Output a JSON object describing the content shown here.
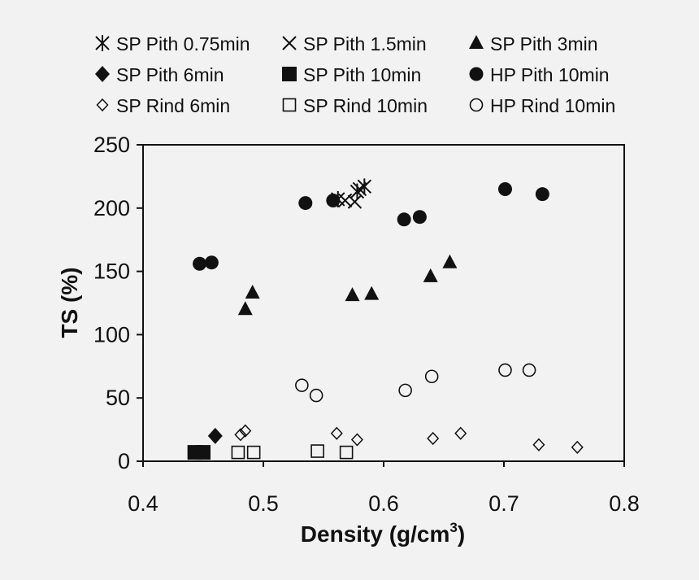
{
  "chart_data": {
    "type": "scatter",
    "xlabel": "Density (g/cm",
    "xlabel_superscript": "3",
    "xlabel_suffix": ")",
    "ylabel": "TS (%)",
    "xlim": [
      0.4,
      0.8
    ],
    "ylim": [
      0,
      250
    ],
    "x_ticks": [
      "0.4",
      "0.5",
      "0.6",
      "0.7",
      "0.8"
    ],
    "y_ticks": [
      "0",
      "50",
      "100",
      "150",
      "200",
      "250"
    ],
    "grid": false,
    "legend_position": "top",
    "series": [
      {
        "name": "SP Pith 0.75min",
        "marker": "asterisk",
        "points": [
          [
            0.562,
            207
          ],
          [
            0.578,
            213
          ],
          [
            0.584,
            217
          ]
        ]
      },
      {
        "name": "SP Pith 1.5min",
        "marker": "x",
        "points": [
          [
            0.568,
            206
          ],
          [
            0.576,
            205
          ],
          [
            0.58,
            215
          ]
        ]
      },
      {
        "name": "SP Pith 3min",
        "marker": "triangle",
        "points": [
          [
            0.485,
            120
          ],
          [
            0.491,
            133
          ],
          [
            0.574,
            131
          ],
          [
            0.59,
            132
          ],
          [
            0.639,
            146
          ],
          [
            0.655,
            157
          ]
        ]
      },
      {
        "name": "SP Pith 6min",
        "marker": "diamond-filled",
        "points": [
          [
            0.46,
            20
          ]
        ]
      },
      {
        "name": "SP Pith 10min",
        "marker": "square-filled",
        "points": [
          [
            0.443,
            7
          ],
          [
            0.45,
            7
          ]
        ]
      },
      {
        "name": "HP Pith 10min",
        "marker": "circle-filled",
        "points": [
          [
            0.447,
            156
          ],
          [
            0.457,
            157
          ],
          [
            0.535,
            204
          ],
          [
            0.558,
            206
          ],
          [
            0.617,
            191
          ],
          [
            0.63,
            193
          ],
          [
            0.701,
            215
          ],
          [
            0.732,
            211
          ]
        ]
      },
      {
        "name": "SP Rind 6min",
        "marker": "diamond-open",
        "points": [
          [
            0.481,
            21
          ],
          [
            0.485,
            24
          ],
          [
            0.561,
            22
          ],
          [
            0.578,
            17
          ],
          [
            0.641,
            18
          ],
          [
            0.664,
            22
          ],
          [
            0.729,
            13
          ],
          [
            0.761,
            11
          ]
        ]
      },
      {
        "name": "SP Rind 10min",
        "marker": "square-open",
        "points": [
          [
            0.479,
            7
          ],
          [
            0.492,
            7
          ],
          [
            0.545,
            8
          ],
          [
            0.569,
            7
          ]
        ]
      },
      {
        "name": "HP Rind 10min",
        "marker": "circle-open",
        "points": [
          [
            0.532,
            60
          ],
          [
            0.544,
            52
          ],
          [
            0.618,
            56
          ],
          [
            0.64,
            67
          ],
          [
            0.701,
            72
          ],
          [
            0.721,
            72
          ]
        ]
      }
    ]
  }
}
